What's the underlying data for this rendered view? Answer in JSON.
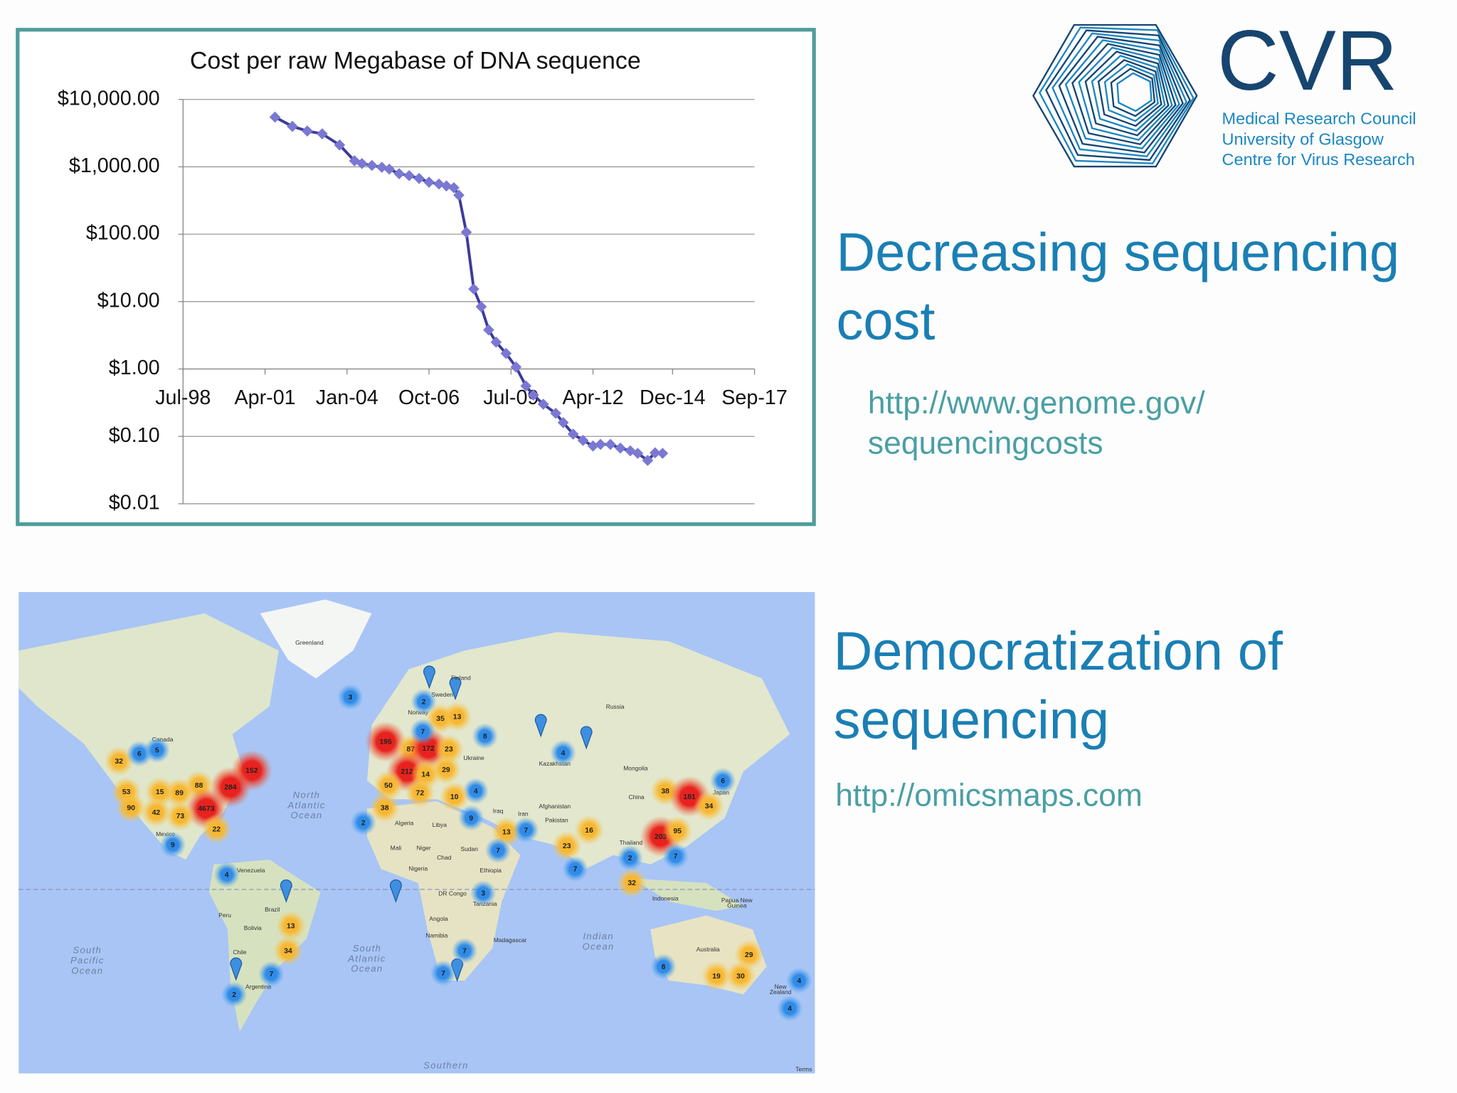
{
  "chart_data": {
    "type": "line",
    "title": "Cost per raw Megabase of DNA sequence",
    "log_scale_y": true,
    "grid": true,
    "xaxis_at": 1,
    "line_color": "#3b3b9c",
    "marker_color": "#7a78d2",
    "x": [
      "2001-08",
      "2002-03",
      "2002-09",
      "2003-03",
      "2003-10",
      "2004-04",
      "2004-07",
      "2004-11",
      "2005-03",
      "2005-06",
      "2005-10",
      "2006-02",
      "2006-06",
      "2006-10",
      "2007-02",
      "2007-05",
      "2007-08",
      "2007-10",
      "2008-01",
      "2008-04",
      "2008-07",
      "2008-10",
      "2009-01",
      "2009-05",
      "2009-09",
      "2010-01",
      "2010-04",
      "2010-08",
      "2011-01",
      "2011-04",
      "2011-08",
      "2011-12",
      "2012-04",
      "2012-07",
      "2012-11",
      "2013-03",
      "2013-07",
      "2013-10",
      "2014-02",
      "2014-05",
      "2014-08"
    ],
    "values": [
      5470,
      3980,
      3400,
      3090,
      2110,
      1230,
      1120,
      1050,
      985,
      925,
      790,
      740,
      673,
      592,
      556,
      521,
      490,
      380,
      107,
      15.4,
      8.4,
      3.8,
      2.5,
      1.7,
      1.07,
      0.56,
      0.41,
      0.3,
      0.22,
      0.16,
      0.108,
      0.087,
      0.072,
      0.076,
      0.076,
      0.067,
      0.061,
      0.056,
      0.044,
      0.057,
      0.056
    ],
    "xlim": [
      "1998-07",
      "2017-09"
    ],
    "xticks": [
      {
        "value": "1998-07",
        "label": "Jul-98"
      },
      {
        "value": "2001-04",
        "label": "Apr-01"
      },
      {
        "value": "2004-01",
        "label": "Jan-04"
      },
      {
        "value": "2006-10",
        "label": "Oct-06"
      },
      {
        "value": "2009-07",
        "label": "Jul-09"
      },
      {
        "value": "2012-04",
        "label": "Apr-12"
      },
      {
        "value": "2014-12",
        "label": "Dec-14"
      },
      {
        "value": "2017-09",
        "label": "Sep-17"
      }
    ],
    "ylim": [
      0.01,
      10000
    ],
    "yticks": [
      {
        "value": 10000,
        "label": "$10,000.00"
      },
      {
        "value": 1000,
        "label": "$1,000.00"
      },
      {
        "value": 100,
        "label": "$100.00"
      },
      {
        "value": 10,
        "label": "$10.00"
      },
      {
        "value": 1,
        "label": "$1.00"
      },
      {
        "value": 0.1,
        "label": "$0.10"
      },
      {
        "value": 0.01,
        "label": "$0.01"
      }
    ]
  },
  "logo": {
    "title": "CVR",
    "lines": [
      "Medical Research Council",
      "University of Glasgow",
      "Centre for Virus Research"
    ]
  },
  "section1": {
    "heading": [
      "Decreasing sequencing",
      "cost"
    ],
    "link": [
      "http://www.genome.gov/",
      "sequencingcosts"
    ]
  },
  "section2": {
    "heading": [
      "Democratization of",
      "sequencing"
    ],
    "link": "http://omicsmaps.com"
  },
  "map": {
    "clusters": [
      3,
      2,
      35,
      13,
      8,
      195,
      87,
      172,
      23,
      7,
      212,
      14,
      29,
      4,
      50,
      72,
      10,
      38,
      2,
      9,
      13,
      7,
      16,
      23,
      7,
      7,
      3,
      7,
      7,
      4,
      6,
      38,
      181,
      34,
      203,
      95,
      2,
      7,
      32,
      8,
      29,
      19,
      30,
      4,
      4,
      152,
      284,
      88,
      4673,
      73,
      89,
      15,
      53,
      90,
      42,
      22,
      32,
      6,
      5,
      9,
      4,
      13,
      34,
      7,
      2
    ],
    "places": [
      "Greenland",
      "Finland",
      "Sweden",
      "Norway",
      "Russia",
      "Canada",
      "Kazakhstan",
      "Mongolia",
      "Ukraine",
      "China",
      "Japan",
      "Afghanistan",
      "Iraq",
      "Iran",
      "Pakistan",
      "Algeria",
      "Libya",
      "Mali",
      "Niger",
      "Chad",
      "Sudan",
      "Nigeria",
      "Ethiopia",
      "Thailand",
      "Indonesia",
      "DR Congo",
      "Tanzania",
      "Angola",
      "Namibia",
      "Madagascar",
      "Australia",
      "Mexico",
      "Venezuela",
      "Peru",
      "Brazil",
      "Bolivia",
      "Chile",
      "Argentina"
    ],
    "oceans": [
      [
        "North",
        "Atlantic",
        "Ocean"
      ],
      [
        "South",
        "Atlantic",
        "Ocean"
      ],
      [
        "Indian",
        "Ocean"
      ],
      [
        "South",
        "Pacific",
        "Ocean"
      ],
      [
        "Papua New",
        "Guinea"
      ],
      [
        "New",
        "Zealand"
      ],
      [
        "Southern"
      ],
      [
        "Terms"
      ]
    ]
  }
}
